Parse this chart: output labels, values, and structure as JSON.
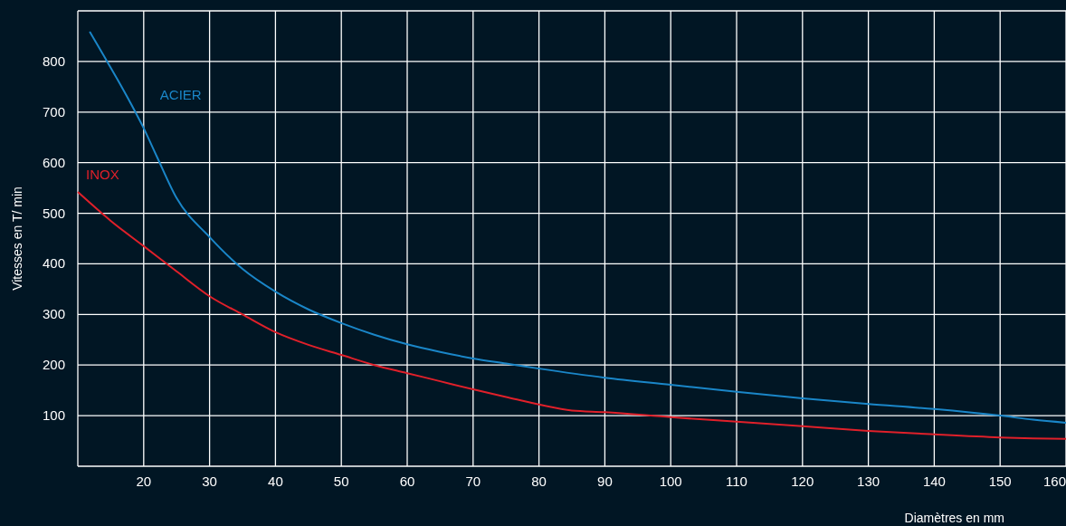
{
  "chart_data": {
    "type": "line",
    "xlabel": "Diamètres en mm",
    "ylabel": "Vitesses en T/ min",
    "xlim": [
      10,
      160
    ],
    "ylim": [
      0,
      900
    ],
    "xticks": [
      20,
      30,
      40,
      50,
      60,
      70,
      80,
      90,
      100,
      110,
      120,
      130,
      140,
      150,
      160
    ],
    "yticks": [
      100,
      200,
      300,
      400,
      500,
      600,
      700,
      800
    ],
    "grid": true,
    "legend": false,
    "marker": "none",
    "line_style": "solid",
    "series": [
      {
        "name": "ACIER",
        "color": "#1a86c8",
        "x": [
          11.8,
          14,
          16,
          18,
          20,
          22,
          25,
          30,
          35,
          40,
          45,
          50,
          55,
          60,
          65,
          70,
          75,
          80,
          90,
          100,
          110,
          120,
          130,
          140,
          150,
          155,
          160
        ],
        "values": [
          859,
          810,
          765,
          718,
          668,
          612,
          530,
          453,
          390,
          345,
          310,
          283,
          260,
          241,
          226,
          213,
          203,
          193,
          175,
          161,
          147,
          134,
          123,
          113,
          100,
          92,
          86
        ]
      },
      {
        "name": "INOX",
        "color": "#e0202a",
        "x": [
          10,
          15,
          20,
          25,
          30,
          35,
          40,
          45,
          50,
          55,
          60,
          65,
          70,
          75,
          80,
          85,
          90,
          100,
          110,
          120,
          130,
          140,
          150,
          155,
          160
        ],
        "values": [
          542,
          485,
          435,
          385,
          336,
          300,
          265,
          240,
          220,
          200,
          184,
          168,
          152,
          137,
          122,
          110,
          107,
          97,
          88,
          79,
          70,
          63,
          57,
          55,
          54
        ]
      }
    ]
  }
}
